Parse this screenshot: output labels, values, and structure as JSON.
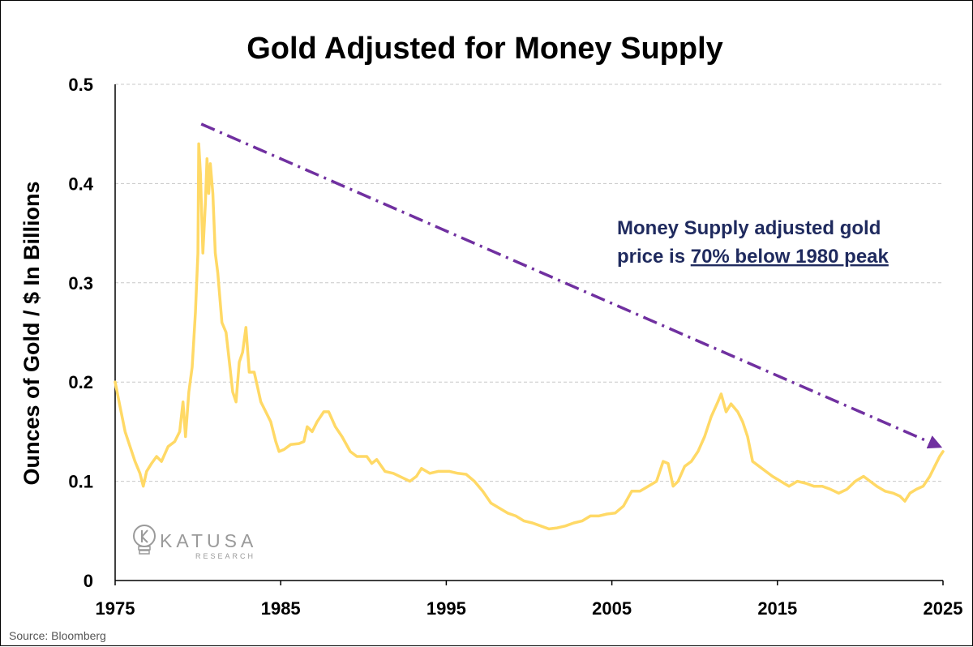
{
  "chart_data": {
    "type": "line",
    "title": "Gold Adjusted for Money Supply",
    "xlabel": "",
    "ylabel": "Ounces of Gold / $ In Billions",
    "xlim": [
      1975,
      2025
    ],
    "ylim": [
      0,
      0.5
    ],
    "x_ticks": [
      "1975",
      "1985",
      "1995",
      "2005",
      "2015",
      "2025"
    ],
    "y_ticks": [
      "0",
      "0.1",
      "0.2",
      "0.3",
      "0.4",
      "0.5"
    ],
    "grid": "horizontal dashed",
    "series": [
      {
        "color": "#FFD966",
        "points": [
          [
            1975.0,
            0.2
          ],
          [
            1975.3,
            0.175
          ],
          [
            1975.6,
            0.15
          ],
          [
            1975.9,
            0.135
          ],
          [
            1976.2,
            0.12
          ],
          [
            1976.5,
            0.108
          ],
          [
            1976.7,
            0.095
          ],
          [
            1976.9,
            0.11
          ],
          [
            1977.2,
            0.118
          ],
          [
            1977.5,
            0.125
          ],
          [
            1977.8,
            0.12
          ],
          [
            1978.2,
            0.135
          ],
          [
            1978.6,
            0.14
          ],
          [
            1978.9,
            0.15
          ],
          [
            1979.1,
            0.18
          ],
          [
            1979.25,
            0.145
          ],
          [
            1979.45,
            0.19
          ],
          [
            1979.65,
            0.215
          ],
          [
            1979.85,
            0.27
          ],
          [
            1980.0,
            0.33
          ],
          [
            1980.05,
            0.44
          ],
          [
            1980.15,
            0.41
          ],
          [
            1980.3,
            0.33
          ],
          [
            1980.45,
            0.38
          ],
          [
            1980.55,
            0.425
          ],
          [
            1980.65,
            0.39
          ],
          [
            1980.75,
            0.42
          ],
          [
            1980.9,
            0.39
          ],
          [
            1981.05,
            0.33
          ],
          [
            1981.2,
            0.31
          ],
          [
            1981.45,
            0.26
          ],
          [
            1981.7,
            0.25
          ],
          [
            1981.9,
            0.22
          ],
          [
            1982.1,
            0.19
          ],
          [
            1982.3,
            0.18
          ],
          [
            1982.5,
            0.22
          ],
          [
            1982.7,
            0.23
          ],
          [
            1982.9,
            0.255
          ],
          [
            1983.1,
            0.21
          ],
          [
            1983.4,
            0.21
          ],
          [
            1983.6,
            0.195
          ],
          [
            1983.8,
            0.18
          ],
          [
            1984.1,
            0.17
          ],
          [
            1984.4,
            0.16
          ],
          [
            1984.7,
            0.14
          ],
          [
            1984.9,
            0.13
          ],
          [
            1985.2,
            0.132
          ],
          [
            1985.6,
            0.137
          ],
          [
            1986.1,
            0.138
          ],
          [
            1986.4,
            0.14
          ],
          [
            1986.6,
            0.155
          ],
          [
            1986.9,
            0.15
          ],
          [
            1987.2,
            0.16
          ],
          [
            1987.6,
            0.17
          ],
          [
            1987.9,
            0.17
          ],
          [
            1988.3,
            0.155
          ],
          [
            1988.7,
            0.145
          ],
          [
            1989.2,
            0.13
          ],
          [
            1989.6,
            0.125
          ],
          [
            1990.2,
            0.125
          ],
          [
            1990.5,
            0.118
          ],
          [
            1990.8,
            0.122
          ],
          [
            1991.3,
            0.11
          ],
          [
            1991.8,
            0.108
          ],
          [
            1992.3,
            0.104
          ],
          [
            1992.8,
            0.1
          ],
          [
            1993.2,
            0.105
          ],
          [
            1993.5,
            0.113
          ],
          [
            1994.0,
            0.108
          ],
          [
            1994.5,
            0.11
          ],
          [
            1995.2,
            0.11
          ],
          [
            1995.7,
            0.108
          ],
          [
            1996.2,
            0.107
          ],
          [
            1996.7,
            0.1
          ],
          [
            1997.2,
            0.09
          ],
          [
            1997.7,
            0.078
          ],
          [
            1998.2,
            0.073
          ],
          [
            1998.7,
            0.068
          ],
          [
            1999.2,
            0.065
          ],
          [
            1999.7,
            0.06
          ],
          [
            2000.2,
            0.058
          ],
          [
            2000.7,
            0.055
          ],
          [
            2001.2,
            0.052
          ],
          [
            2001.7,
            0.053
          ],
          [
            2002.2,
            0.055
          ],
          [
            2002.7,
            0.058
          ],
          [
            2003.2,
            0.06
          ],
          [
            2003.7,
            0.065
          ],
          [
            2004.2,
            0.065
          ],
          [
            2004.7,
            0.067
          ],
          [
            2005.2,
            0.068
          ],
          [
            2005.7,
            0.075
          ],
          [
            2006.2,
            0.09
          ],
          [
            2006.7,
            0.09
          ],
          [
            2007.2,
            0.095
          ],
          [
            2007.7,
            0.1
          ],
          [
            2008.1,
            0.12
          ],
          [
            2008.4,
            0.118
          ],
          [
            2008.7,
            0.095
          ],
          [
            2009.0,
            0.1
          ],
          [
            2009.4,
            0.115
          ],
          [
            2009.8,
            0.12
          ],
          [
            2010.2,
            0.13
          ],
          [
            2010.6,
            0.145
          ],
          [
            2011.0,
            0.165
          ],
          [
            2011.4,
            0.18
          ],
          [
            2011.6,
            0.188
          ],
          [
            2011.9,
            0.17
          ],
          [
            2012.2,
            0.178
          ],
          [
            2012.6,
            0.17
          ],
          [
            2012.9,
            0.16
          ],
          [
            2013.2,
            0.145
          ],
          [
            2013.5,
            0.12
          ],
          [
            2013.9,
            0.115
          ],
          [
            2014.3,
            0.11
          ],
          [
            2014.7,
            0.105
          ],
          [
            2015.2,
            0.1
          ],
          [
            2015.7,
            0.095
          ],
          [
            2016.2,
            0.1
          ],
          [
            2016.7,
            0.098
          ],
          [
            2017.2,
            0.095
          ],
          [
            2017.7,
            0.095
          ],
          [
            2018.2,
            0.092
          ],
          [
            2018.7,
            0.088
          ],
          [
            2019.2,
            0.092
          ],
          [
            2019.7,
            0.1
          ],
          [
            2020.2,
            0.105
          ],
          [
            2020.6,
            0.1
          ],
          [
            2021.0,
            0.095
          ],
          [
            2021.5,
            0.09
          ],
          [
            2022.0,
            0.088
          ],
          [
            2022.4,
            0.085
          ],
          [
            2022.7,
            0.08
          ],
          [
            2023.0,
            0.088
          ],
          [
            2023.4,
            0.092
          ],
          [
            2023.8,
            0.095
          ],
          [
            2024.2,
            0.105
          ],
          [
            2024.5,
            0.115
          ],
          [
            2024.8,
            0.125
          ],
          [
            2025.0,
            0.13
          ]
        ]
      }
    ],
    "trend_arrow": {
      "from": [
        1980.2,
        0.46
      ],
      "to": [
        2024.8,
        0.135
      ],
      "color": "#7030A0"
    },
    "annotation": {
      "line1": "Money Supply adjusted gold",
      "line2_prefix": "price is ",
      "line2_underlined": "70% below 1980 peak"
    },
    "source": "Source: Bloomberg",
    "logo": {
      "main": "KATUSA",
      "sub": "RESEARCH",
      "icon": "lightbulb-k-icon"
    }
  }
}
